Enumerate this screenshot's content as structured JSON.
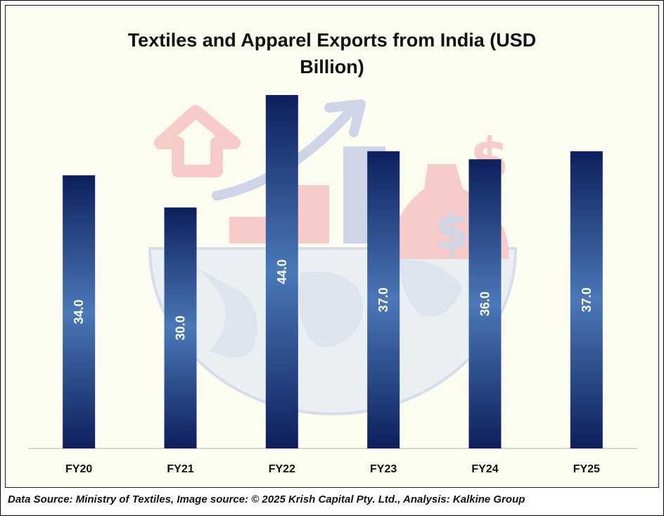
{
  "chart_data": {
    "type": "bar",
    "title": "Textiles and Apparel Exports from India (USD Billion)",
    "categories": [
      "FY20",
      "FY21",
      "FY22",
      "FY23",
      "FY24",
      "FY25"
    ],
    "values": [
      34.0,
      30.0,
      44.0,
      37.0,
      36.0,
      37.0
    ],
    "data_labels": [
      "34.0",
      "30.0",
      "44.0",
      "37.0",
      "36.0",
      "37.0"
    ],
    "xlabel": "",
    "ylabel": "",
    "ylim": [
      0,
      50
    ],
    "grid": false,
    "legend": "none",
    "bar_colors": {
      "edge": "#0d1f5c",
      "center": "#4a78b8"
    }
  },
  "footer": {
    "source_text": "Data Source: Ministry of Textiles, Image source: © 2025 Krish Capital Pty. Ltd., Analysis: Kalkine Group"
  },
  "background_illustration": {
    "icons": [
      "up-arrow-icon",
      "growth-arrow-icon",
      "bar-chart-icon",
      "dollar-icon",
      "money-bag-icon",
      "globe-icon"
    ],
    "colors": {
      "pink": "#f3a5a8",
      "blue": "#a8b6e0",
      "globe": "#dbe5f6"
    }
  }
}
